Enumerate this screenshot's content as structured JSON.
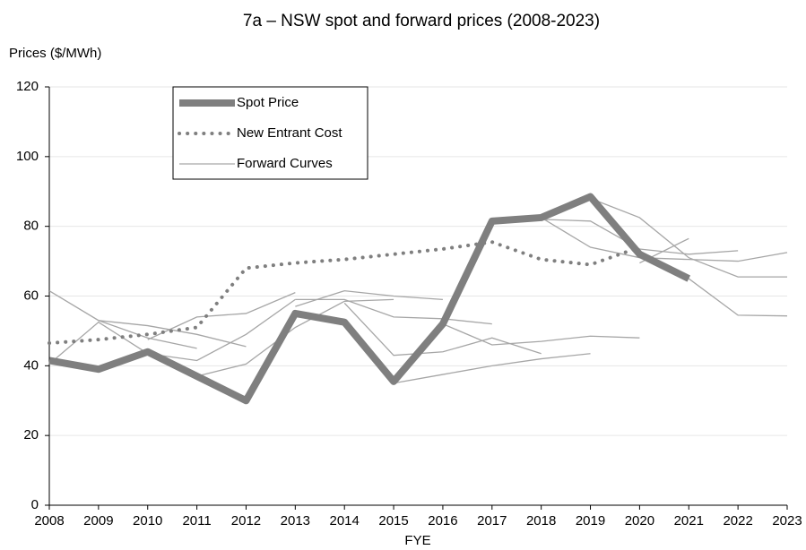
{
  "chart_data": {
    "type": "line",
    "title": "7a – NSW spot and forward prices (2008-2023)",
    "y_label": "Prices ($/MWh)",
    "x_label": "FYE",
    "xlim": [
      2008,
      2023
    ],
    "xticks": [
      2008,
      2009,
      2010,
      2011,
      2012,
      2013,
      2014,
      2015,
      2016,
      2017,
      2018,
      2019,
      2020,
      2021,
      2022,
      2023
    ],
    "ylim": [
      0,
      120
    ],
    "yticks": [
      0,
      20,
      40,
      60,
      80,
      100,
      120
    ],
    "grid": true,
    "series": [
      {
        "name": "Spot Price",
        "color": "#7f7f7f",
        "style": "thick",
        "x": [
          2008,
          2009,
          2010,
          2011,
          2012,
          2013,
          2014,
          2015,
          2016,
          2017,
          2018,
          2019,
          2020,
          2021
        ],
        "values": [
          41.5,
          39,
          44,
          37,
          30,
          55,
          52.5,
          35.5,
          52,
          81.5,
          82.5,
          88.5,
          72,
          65
        ]
      },
      {
        "name": "New Entrant Cost",
        "color": "#7f7f7f",
        "style": "dotted",
        "x": [
          2008,
          2009,
          2010,
          2011,
          2012,
          2013,
          2014,
          2015,
          2016,
          2017,
          2018,
          2019,
          2020
        ],
        "values": [
          46.5,
          47.5,
          49,
          51,
          68,
          69.5,
          70.5,
          72,
          73.5,
          75.5,
          70.5,
          69,
          74
        ]
      },
      {
        "name": "Forward Curves",
        "color": "#a6a6a6",
        "style": "thin",
        "curves": [
          {
            "x": [
              2008,
              2009,
              2010,
              2011
            ],
            "values": [
              61.5,
              53,
              48,
              45
            ]
          },
          {
            "x": [
              2009,
              2010,
              2011,
              2012
            ],
            "values": [
              53,
              51.5,
              49,
              45.5
            ]
          },
          {
            "x": [
              2010,
              2011,
              2012,
              2013
            ],
            "values": [
              47.5,
              54,
              55,
              61
            ]
          },
          {
            "x": [
              2008,
              2009,
              2010,
              2011,
              2012,
              2013
            ],
            "values": [
              40.5,
              52.5,
              43.5,
              41.5,
              49,
              59
            ]
          },
          {
            "x": [
              2011,
              2012,
              2013,
              2014,
              2015
            ],
            "values": [
              37,
              40.5,
              51,
              58.5,
              59
            ]
          },
          {
            "x": [
              2013,
              2014,
              2015,
              2016
            ],
            "values": [
              57,
              61.5,
              60,
              59
            ]
          },
          {
            "x": [
              2013,
              2014,
              2015,
              2016,
              2017
            ],
            "values": [
              59,
              59,
              54,
              53.5,
              52
            ]
          },
          {
            "x": [
              2014,
              2015,
              2016,
              2017,
              2018
            ],
            "values": [
              58,
              43,
              44,
              48,
              43.5
            ]
          },
          {
            "x": [
              2015,
              2016,
              2017,
              2018,
              2019
            ],
            "values": [
              35,
              37.5,
              40,
              42,
              43.5
            ]
          },
          {
            "x": [
              2016,
              2017,
              2018,
              2019,
              2020
            ],
            "values": [
              52,
              46,
              47,
              48.5,
              48
            ]
          },
          {
            "x": [
              2017,
              2018,
              2019,
              2020,
              2021,
              2022
            ],
            "values": [
              82,
              82,
              81.5,
              73.5,
              72,
              73
            ]
          },
          {
            "x": [
              2018,
              2019,
              2020,
              2021,
              2022,
              2023
            ],
            "values": [
              82.5,
              74,
              71,
              70.5,
              70,
              72.5
            ]
          },
          {
            "x": [
              2019,
              2020,
              2021,
              2022,
              2023
            ],
            "values": [
              88,
              82.5,
              71,
              65.5,
              65.5
            ]
          },
          {
            "x": [
              2020,
              2021
            ],
            "values": [
              69.5,
              76.5
            ]
          },
          {
            "x": [
              2020,
              2021,
              2022,
              2023
            ],
            "values": [
              73,
              65,
              54.5,
              54.3
            ]
          }
        ]
      }
    ]
  }
}
